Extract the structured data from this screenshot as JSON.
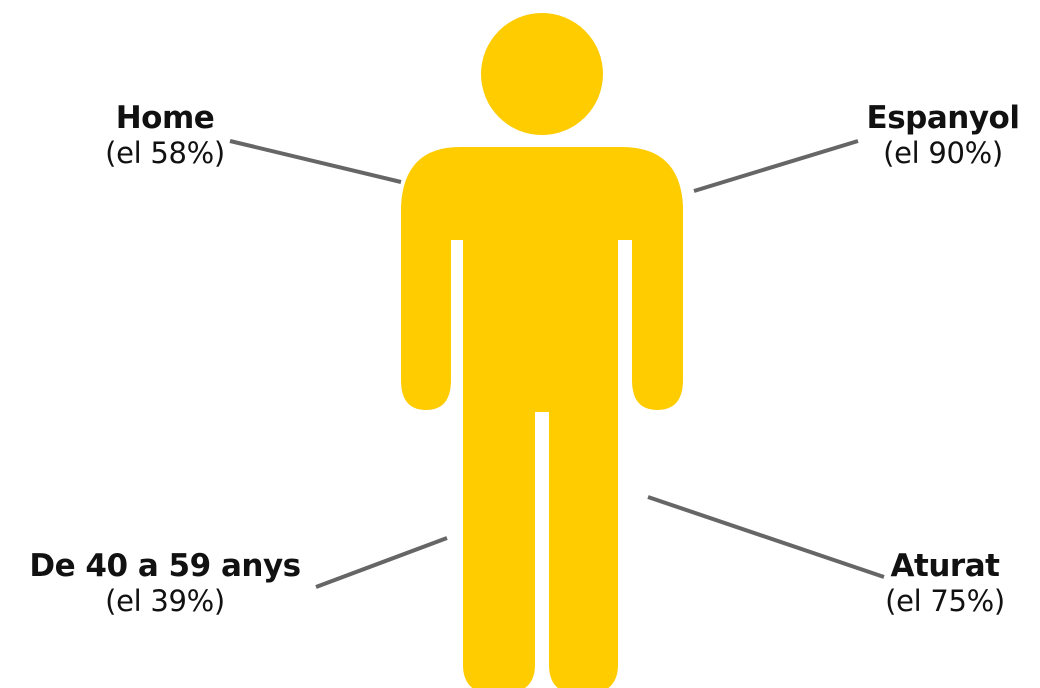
{
  "colors": {
    "figure": "#FFCC00",
    "connector": "#666666",
    "text": "#111111",
    "background": "#FFFFFF"
  },
  "figure_icon": "person-silhouette-icon",
  "labels": {
    "home": {
      "title": "Home",
      "value": "(el 58%)",
      "percent": 58
    },
    "espanyol": {
      "title": "Espanyol",
      "value": "(el 90%)",
      "percent": 90
    },
    "age": {
      "title": "De 40 a 59 anys",
      "value": "(el 39%)",
      "percent": 39
    },
    "aturat": {
      "title": "Aturat",
      "value": "(el 75%)",
      "percent": 75
    }
  }
}
